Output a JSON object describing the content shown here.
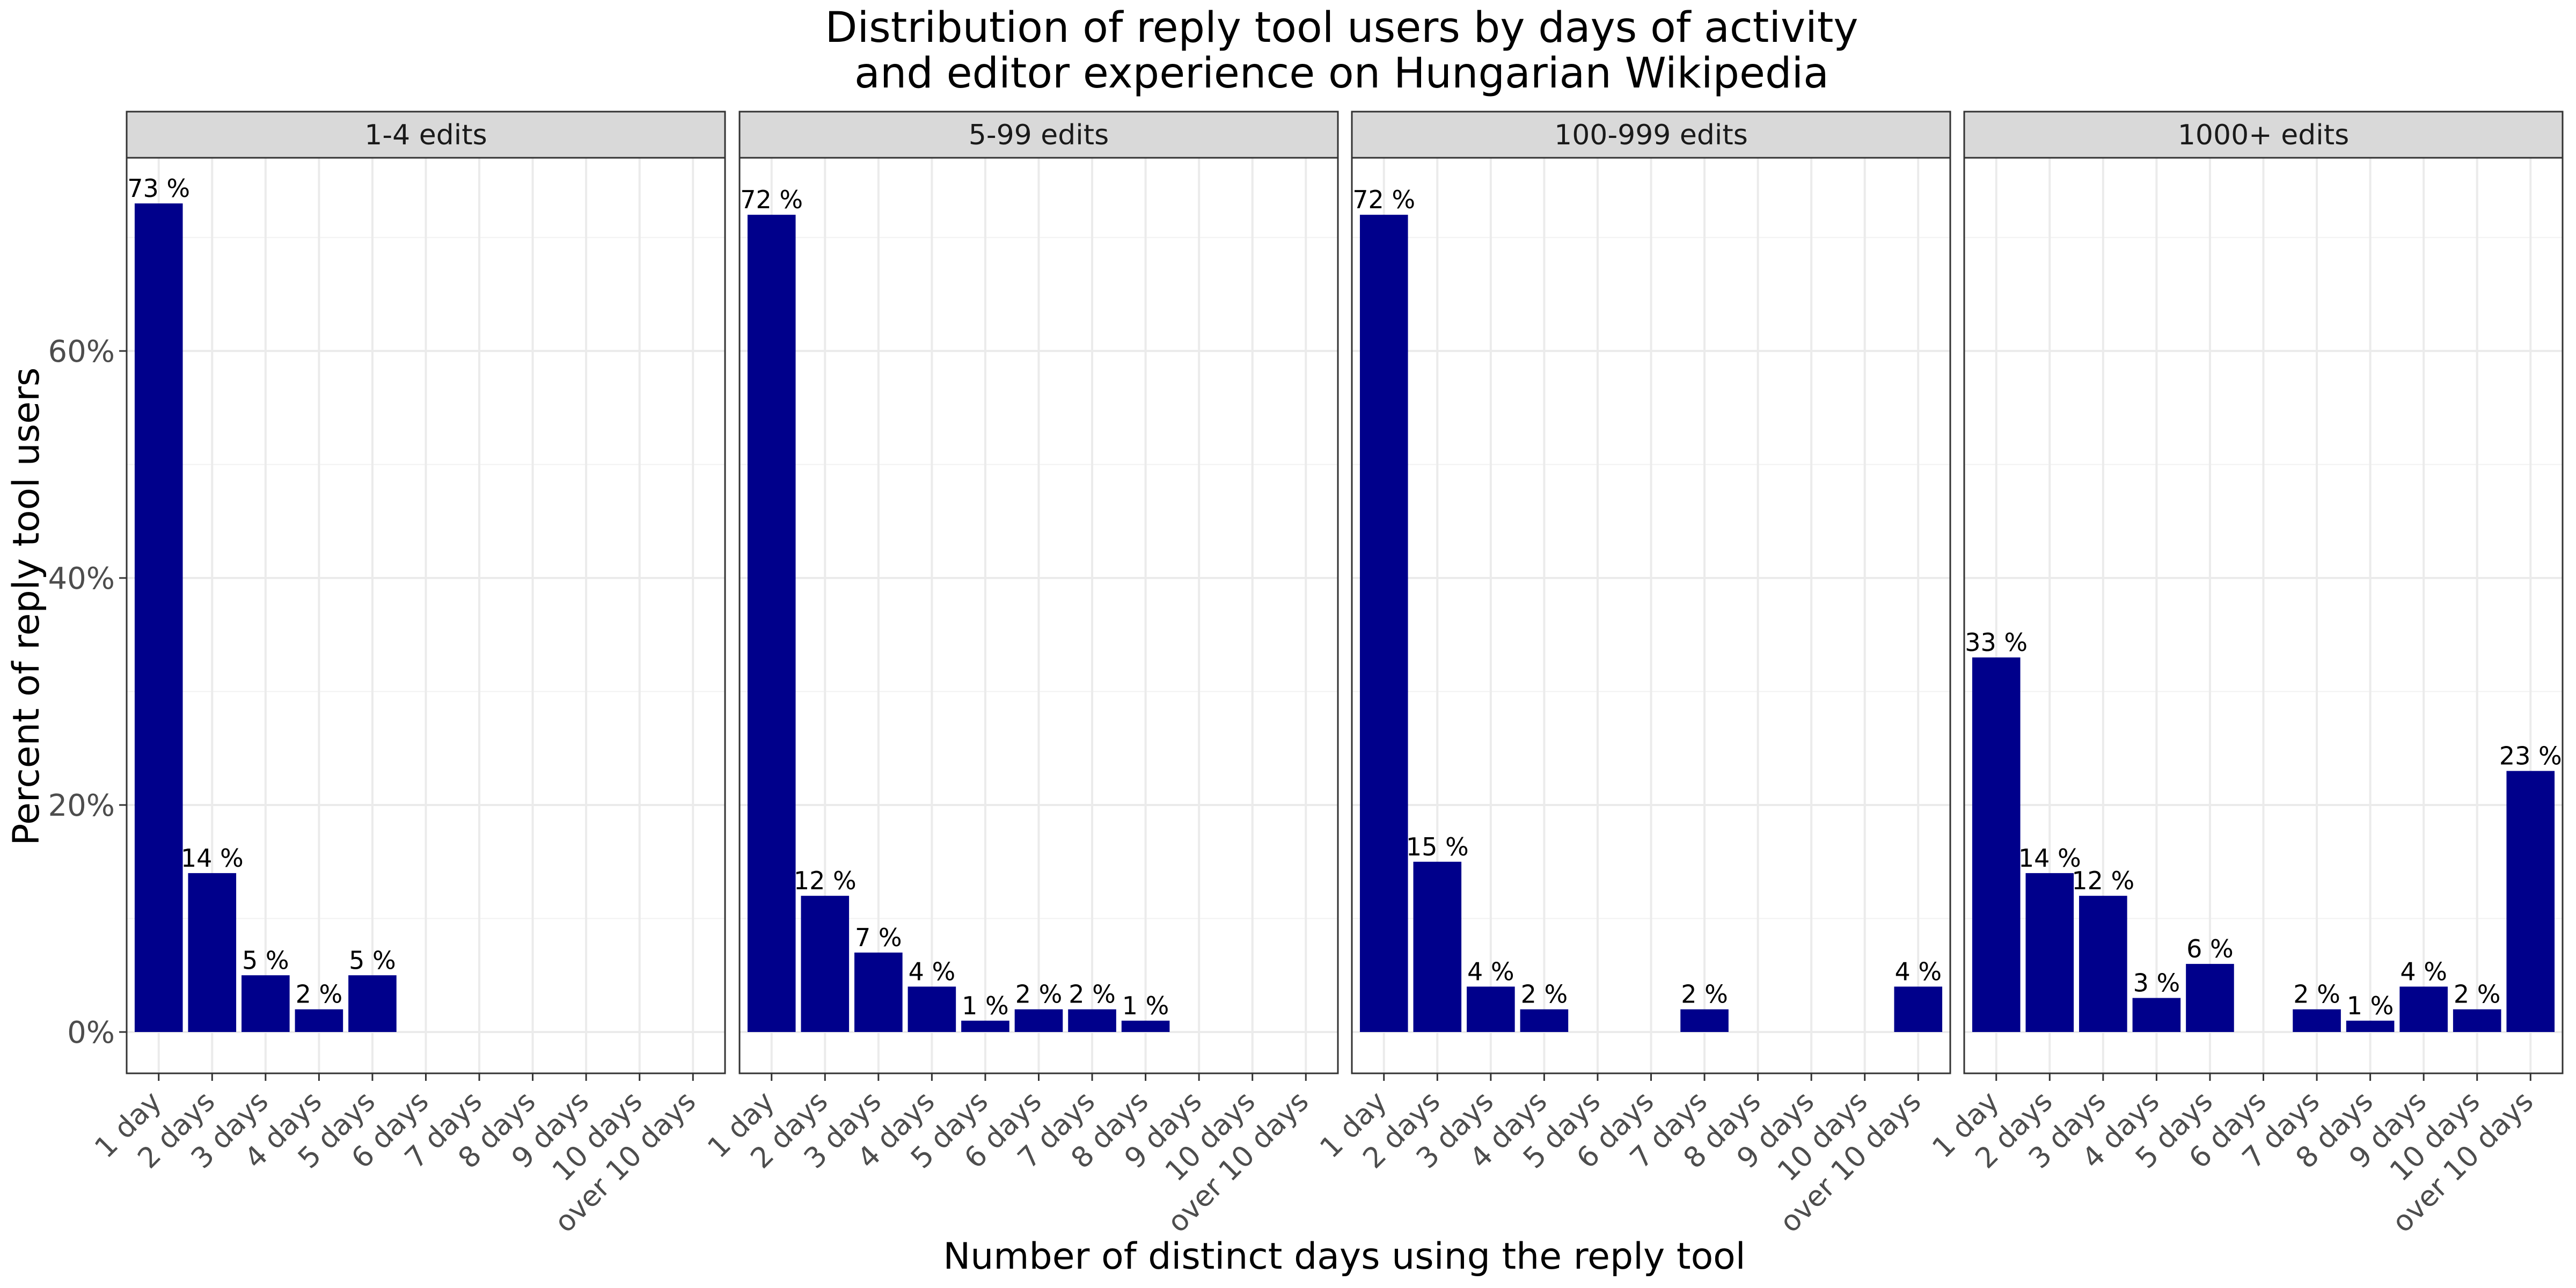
{
  "chart_data": {
    "type": "bar",
    "title_line1": "Distribution of reply tool users by days of activity",
    "title_line2": "and editor experience on Hungarian Wikipedia",
    "xlabel": "Number of distinct days using the reply tool",
    "ylabel": "Percent of reply tool users",
    "ylim": [
      0,
      77
    ],
    "yticks": [
      0,
      20,
      40,
      60
    ],
    "ytick_labels": [
      "0%",
      "20%",
      "40%",
      "60%"
    ],
    "grid": true,
    "bar_color": "#00008B",
    "categories": [
      "1 day",
      "2 days",
      "3 days",
      "4 days",
      "5 days",
      "6 days",
      "7 days",
      "8 days",
      "9 days",
      "10 days",
      "over 10 days"
    ],
    "panels": [
      {
        "name": "1-4 edits",
        "values": [
          73,
          14,
          5,
          2,
          5,
          null,
          null,
          null,
          null,
          null,
          null
        ],
        "labels": [
          "73 %",
          "14 %",
          "5 %",
          "2 %",
          "5 %",
          "",
          "",
          "",
          "",
          "",
          ""
        ]
      },
      {
        "name": "5-99 edits",
        "values": [
          72,
          12,
          7,
          4,
          1,
          2,
          2,
          1,
          null,
          null,
          null
        ],
        "labels": [
          "72 %",
          "12 %",
          "7 %",
          "4 %",
          "1 %",
          "2 %",
          "2 %",
          "1 %",
          "",
          "",
          ""
        ]
      },
      {
        "name": "100-999 edits",
        "values": [
          72,
          15,
          4,
          2,
          null,
          null,
          2,
          null,
          null,
          null,
          4
        ],
        "labels": [
          "72 %",
          "15 %",
          "4 %",
          "2 %",
          "",
          "",
          "2 %",
          "",
          "",
          "",
          "4 %"
        ]
      },
      {
        "name": "1000+ edits",
        "values": [
          33,
          14,
          12,
          3,
          6,
          null,
          2,
          1,
          4,
          2,
          23
        ],
        "labels": [
          "33 %",
          "14 %",
          "12 %",
          "3 %",
          "6 %",
          "",
          "2 %",
          "1 %",
          "4 %",
          "2 %",
          "23 %"
        ]
      }
    ]
  }
}
